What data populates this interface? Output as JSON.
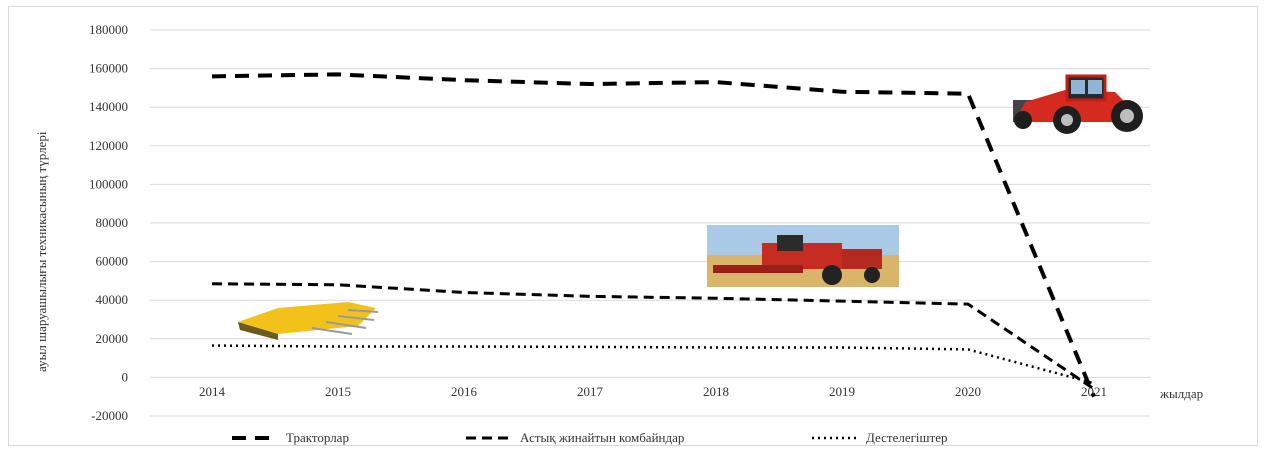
{
  "chart_data": {
    "type": "line",
    "title": "",
    "ylabel": "ауыл шаруашылығы техникасының түрлері",
    "xlabel": "жылдар",
    "categories": [
      "2014",
      "2015",
      "2016",
      "2017",
      "2018",
      "2019",
      "2020",
      "2021"
    ],
    "ylim": [
      -20000,
      180000
    ],
    "yticks": [
      180000,
      160000,
      140000,
      120000,
      100000,
      80000,
      60000,
      40000,
      20000,
      0,
      -20000
    ],
    "series": [
      {
        "name": "Тракторлар",
        "values": [
          156000,
          157000,
          154000,
          152000,
          153000,
          148000,
          147000,
          -10000
        ],
        "style": "long-dash",
        "color": "#000000"
      },
      {
        "name": "Астық жинайтын комбайндар",
        "values": [
          48500,
          48000,
          44000,
          42000,
          41000,
          39500,
          38000,
          -6000
        ],
        "style": "dash",
        "color": "#000000"
      },
      {
        "name": "Дестелегіштер",
        "values": [
          16500,
          16000,
          16000,
          15800,
          15500,
          15500,
          14500,
          -3000
        ],
        "style": "dot",
        "color": "#000000"
      }
    ],
    "grid": true,
    "legend_position": "bottom"
  },
  "images": [
    {
      "name": "tractor-image",
      "depicts": "red tractor"
    },
    {
      "name": "combine-harvester-image",
      "depicts": "red combine harvester in field"
    },
    {
      "name": "header-attachment-image",
      "depicts": "yellow header attachment"
    }
  ]
}
